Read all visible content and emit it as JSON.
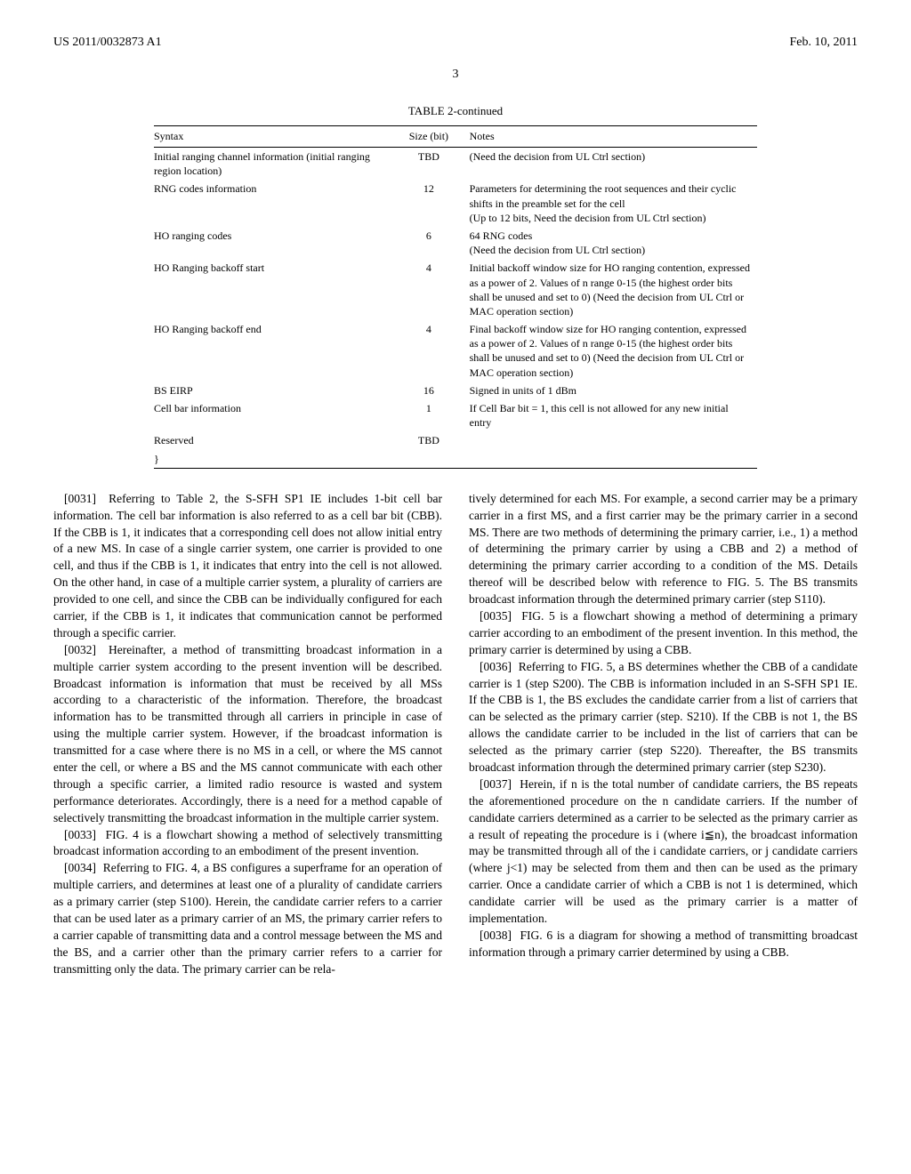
{
  "header": {
    "left": "US 2011/0032873 A1",
    "right": "Feb. 10, 2011"
  },
  "page_number": "3",
  "table": {
    "title": "TABLE 2-continued",
    "columns": [
      "Syntax",
      "Size (bit)",
      "Notes"
    ],
    "rows": [
      {
        "syntax": "Initial ranging channel information (initial ranging region location)",
        "size": "TBD",
        "notes": "(Need the decision from UL Ctrl section)"
      },
      {
        "syntax": "RNG codes information",
        "size": "12",
        "notes": "Parameters for determining the root sequences and their cyclic shifts in the preamble set for the cell\n(Up to 12 bits, Need the decision from UL Ctrl section)"
      },
      {
        "syntax": "HO ranging codes",
        "size": "6",
        "notes": "64 RNG codes\n(Need the decision from UL Ctrl section)"
      },
      {
        "syntax": "HO Ranging backoff start",
        "size": "4",
        "notes": "Initial backoff window size for HO ranging contention, expressed as a power of 2. Values of n range 0-15 (the highest order bits shall be unused and set to 0) (Need the decision from UL Ctrl or MAC operation section)"
      },
      {
        "syntax": "HO Ranging backoff end",
        "size": "4",
        "notes": "Final backoff window size for HO ranging contention, expressed as a power of 2. Values of n range 0-15 (the highest order bits shall be unused and set to 0) (Need the decision from UL Ctrl or MAC operation section)"
      },
      {
        "syntax": "BS EIRP",
        "size": "16",
        "notes": "Signed in units of 1 dBm"
      },
      {
        "syntax": "Cell bar information",
        "size": "1",
        "notes": "If Cell Bar bit = 1, this cell is not allowed for any new initial entry"
      },
      {
        "syntax": "Reserved",
        "size": "TBD",
        "notes": ""
      },
      {
        "syntax": "}",
        "size": "",
        "notes": ""
      }
    ]
  },
  "left_column": {
    "paragraphs": [
      {
        "num": "[0031]",
        "text": "Referring to Table 2, the S-SFH SP1 IE includes 1-bit cell bar information. The cell bar information is also referred to as a cell bar bit (CBB). If the CBB is 1, it indicates that a corresponding cell does not allow initial entry of a new MS. In case of a single carrier system, one carrier is provided to one cell, and thus if the CBB is 1, it indicates that entry into the cell is not allowed. On the other hand, in case of a multiple carrier system, a plurality of carriers are provided to one cell, and since the CBB can be individually configured for each carrier, if the CBB is 1, it indicates that communication cannot be performed through a specific carrier."
      },
      {
        "num": "[0032]",
        "text": "Hereinafter, a method of transmitting broadcast information in a multiple carrier system according to the present invention will be described. Broadcast information is information that must be received by all MSs according to a characteristic of the information. Therefore, the broadcast information has to be transmitted through all carriers in principle in case of using the multiple carrier system. However, if the broadcast information is transmitted for a case where there is no MS in a cell, or where the MS cannot enter the cell, or where a BS and the MS cannot communicate with each other through a specific carrier, a limited radio resource is wasted and system performance deteriorates. Accordingly, there is a need for a method capable of selectively transmitting the broadcast information in the multiple carrier system."
      },
      {
        "num": "[0033]",
        "text": "FIG. 4 is a flowchart showing a method of selectively transmitting broadcast information according to an embodiment of the present invention."
      },
      {
        "num": "[0034]",
        "text": "Referring to FIG. 4, a BS configures a superframe for an operation of multiple carriers, and determines at least one of a plurality of candidate carriers as a primary carrier (step S100). Herein, the candidate carrier refers to a carrier that can be used later as a primary carrier of an MS, the primary carrier refers to a carrier capable of transmitting data and a control message between the MS and the BS, and a carrier other than the primary carrier refers to a carrier for transmitting only the data. The primary carrier can be rela-"
      }
    ]
  },
  "right_column": {
    "paragraphs": [
      {
        "num": "",
        "text": "tively determined for each MS. For example, a second carrier may be a primary carrier in a first MS, and a first carrier may be the primary carrier in a second MS. There are two methods of determining the primary carrier, i.e., 1) a method of determining the primary carrier by using a CBB and 2) a method of determining the primary carrier according to a condition of the MS. Details thereof will be described below with reference to FIG. 5. The BS transmits broadcast information through the determined primary carrier (step S110)."
      },
      {
        "num": "[0035]",
        "text": "FIG. 5 is a flowchart showing a method of determining a primary carrier according to an embodiment of the present invention. In this method, the primary carrier is determined by using a CBB."
      },
      {
        "num": "[0036]",
        "text": "Referring to FIG. 5, a BS determines whether the CBB of a candidate carrier is 1 (step S200). The CBB is information included in an S-SFH SP1 IE. If the CBB is 1, the BS excludes the candidate carrier from a list of carriers that can be selected as the primary carrier (step. S210). If the CBB is not 1, the BS allows the candidate carrier to be included in the list of carriers that can be selected as the primary carrier (step S220). Thereafter, the BS transmits broadcast information through the determined primary carrier (step S230)."
      },
      {
        "num": "[0037]",
        "text": "Herein, if n is the total number of candidate carriers, the BS repeats the aforementioned procedure on the n candidate carriers. If the number of candidate carriers determined as a carrier to be selected as the primary carrier as a result of repeating the procedure is i (where i≦n), the broadcast information may be transmitted through all of the i candidate carriers, or j candidate carriers (where j<1) may be selected from them and then can be used as the primary carrier. Once a candidate carrier of which a CBB is not 1 is determined, which candidate carrier will be used as the primary carrier is a matter of implementation."
      },
      {
        "num": "[0038]",
        "text": "FIG. 6 is a diagram for showing a method of transmitting broadcast information through a primary carrier determined by using a CBB."
      }
    ]
  }
}
